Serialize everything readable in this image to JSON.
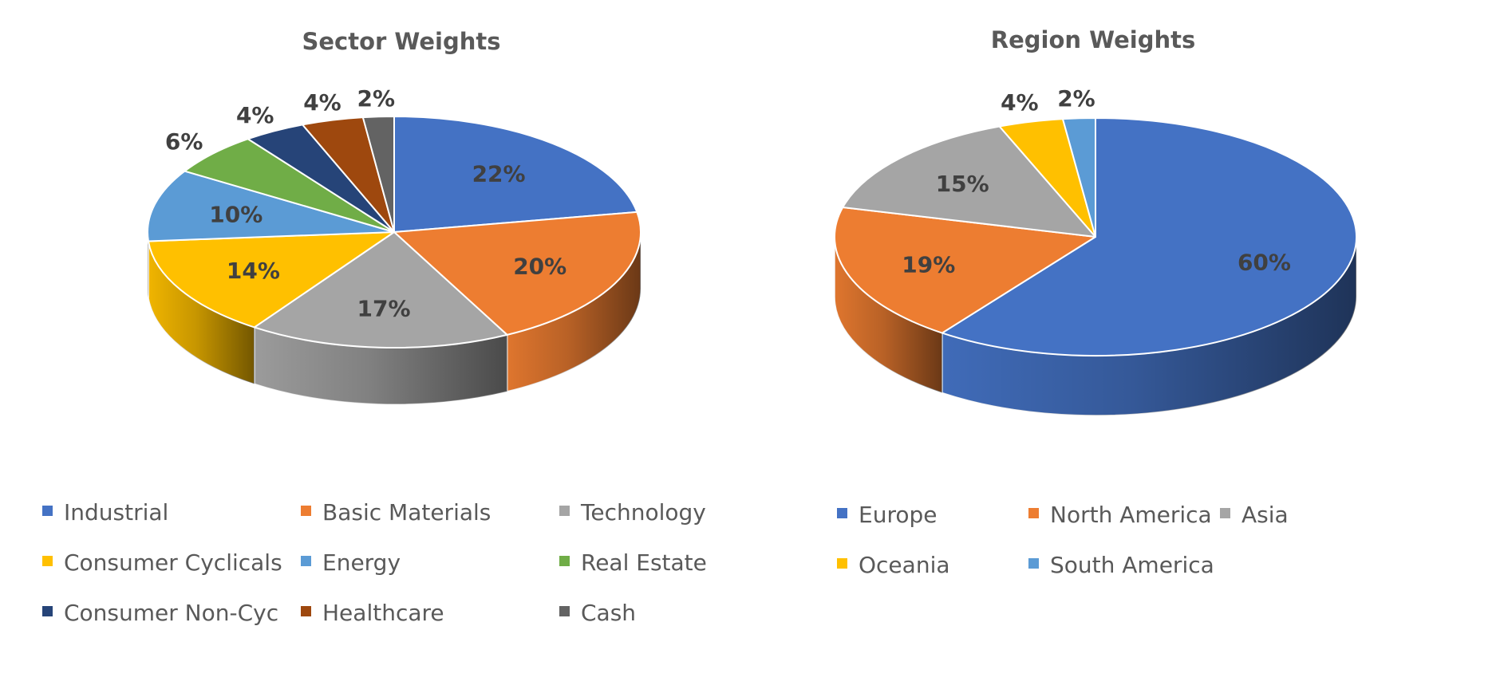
{
  "chart_data": [
    {
      "type": "pie",
      "style": "3d",
      "title": "Sector Weights",
      "legend_position": "bottom",
      "data_labels": [
        "22%",
        "20%",
        "17%",
        "14%",
        "10%",
        "6%",
        "4%",
        "4%",
        "2%"
      ],
      "slices": [
        {
          "label": "Industrial",
          "value": 22,
          "color": "#4472C4"
        },
        {
          "label": "Basic Materials",
          "value": 20,
          "color": "#ED7D31"
        },
        {
          "label": "Technology",
          "value": 17,
          "color": "#A5A5A5"
        },
        {
          "label": "Consumer Cyclicals",
          "value": 14,
          "color": "#FFC000"
        },
        {
          "label": "Energy",
          "value": 10,
          "color": "#5B9BD5"
        },
        {
          "label": "Real Estate",
          "value": 6,
          "color": "#70AD47"
        },
        {
          "label": "Consumer Non-Cyc",
          "value": 4,
          "color": "#264478"
        },
        {
          "label": "Healthcare",
          "value": 4,
          "color": "#9E480E"
        },
        {
          "label": "Cash",
          "value": 2,
          "color": "#636363"
        }
      ]
    },
    {
      "type": "pie",
      "style": "3d",
      "title": "Region Weights",
      "legend_position": "bottom",
      "data_labels": [
        "60%",
        "19%",
        "15%",
        "4%",
        "2%"
      ],
      "slices": [
        {
          "label": "Europe",
          "value": 60,
          "color": "#4472C4"
        },
        {
          "label": "North America",
          "value": 19,
          "color": "#ED7D31"
        },
        {
          "label": "Asia",
          "value": 15,
          "color": "#A5A5A5"
        },
        {
          "label": "Oceania",
          "value": 4,
          "color": "#FFC000"
        },
        {
          "label": "South America",
          "value": 2,
          "color": "#5B9BD5"
        }
      ]
    }
  ]
}
